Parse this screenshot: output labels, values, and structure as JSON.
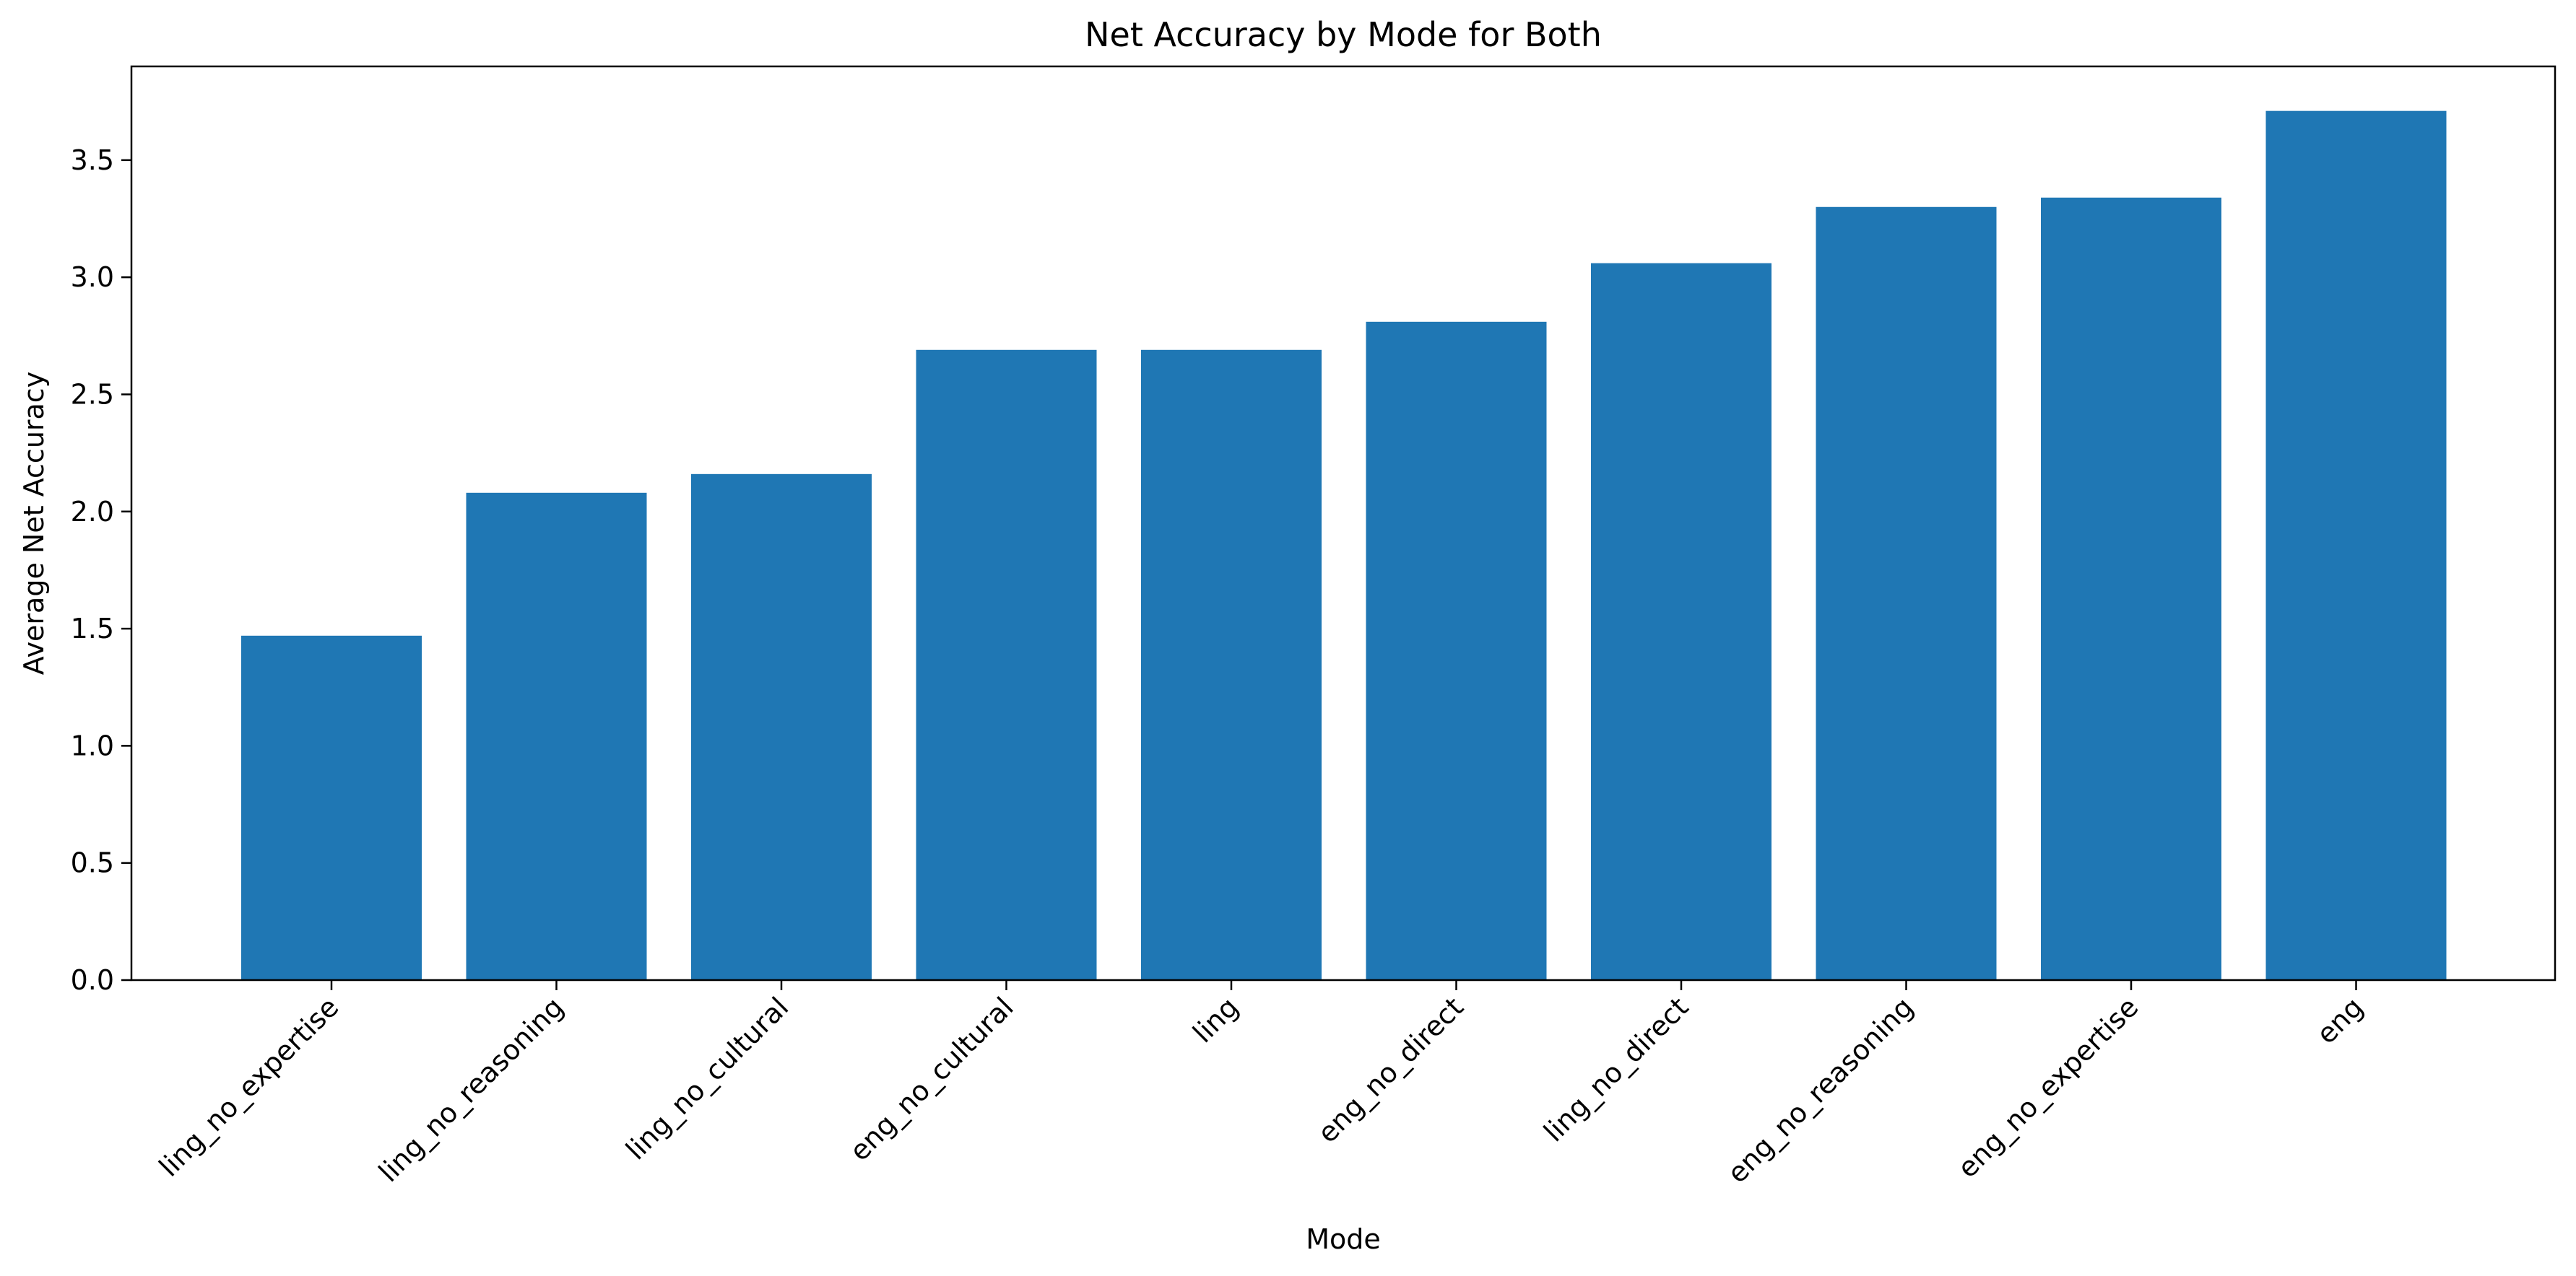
{
  "chart_data": {
    "type": "bar",
    "title": "Net Accuracy by Mode for Both",
    "xlabel": "Mode",
    "ylabel": "Average Net Accuracy",
    "categories": [
      "ling_no_expertise",
      "ling_no_reasoning",
      "ling_no_cultural",
      "eng_no_cultural",
      "ling",
      "eng_no_direct",
      "ling_no_direct",
      "eng_no_reasoning",
      "eng_no_expertise",
      "eng"
    ],
    "values": [
      1.47,
      2.08,
      2.16,
      2.69,
      2.69,
      2.81,
      3.06,
      3.3,
      3.34,
      3.71
    ],
    "ylim": [
      0,
      3.9
    ],
    "yticks": [
      "0.0",
      "0.5",
      "1.0",
      "1.5",
      "2.0",
      "2.5",
      "3.0",
      "3.5"
    ],
    "bar_color": "#1f77b4",
    "grid": false,
    "legend": "none"
  }
}
